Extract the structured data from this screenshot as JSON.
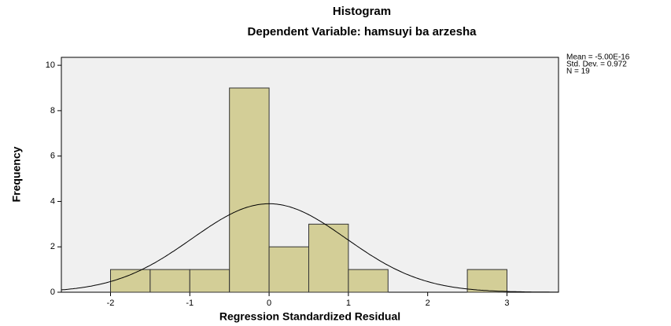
{
  "chart_data": {
    "type": "histogram",
    "title": "Histogram",
    "subtitle": "Dependent Variable: hamsuyi ba arzesha",
    "xlabel": "Regression Standardized Residual",
    "ylabel": "Frequency",
    "bins": [
      -2,
      -1.5,
      -1,
      -0.5,
      0,
      0.5,
      1,
      1.5,
      2,
      2.5,
      3
    ],
    "values": [
      1,
      1,
      1,
      9,
      2,
      3,
      1,
      0,
      0,
      1
    ],
    "color": "#d3ce97",
    "xlim": [
      -2.62,
      3.65
    ],
    "xticks": [
      -2,
      -1,
      0,
      1,
      2,
      3
    ],
    "ylim": [
      0,
      10.35
    ],
    "yticks": [
      0,
      2,
      4,
      6,
      8,
      10
    ],
    "stats": [
      {
        "value": -5e-16,
        "label": "Mean = -5.00E-16"
      },
      {
        "value": 0.972,
        "label": "Std. Dev. = 0.972"
      },
      {
        "value": 19,
        "label": "N = 19"
      }
    ]
  }
}
